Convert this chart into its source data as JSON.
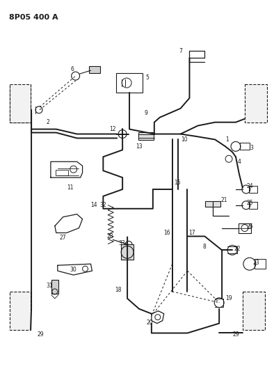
{
  "title": "8P05 400 A",
  "bg_color": "#ffffff",
  "fg_color": "#1a1a1a",
  "fig_width": 3.94,
  "fig_height": 5.33,
  "dpi": 100,
  "header": "8P05 400 A",
  "lw_tube": 1.4,
  "lw_part": 0.9,
  "label_fs": 5.5
}
